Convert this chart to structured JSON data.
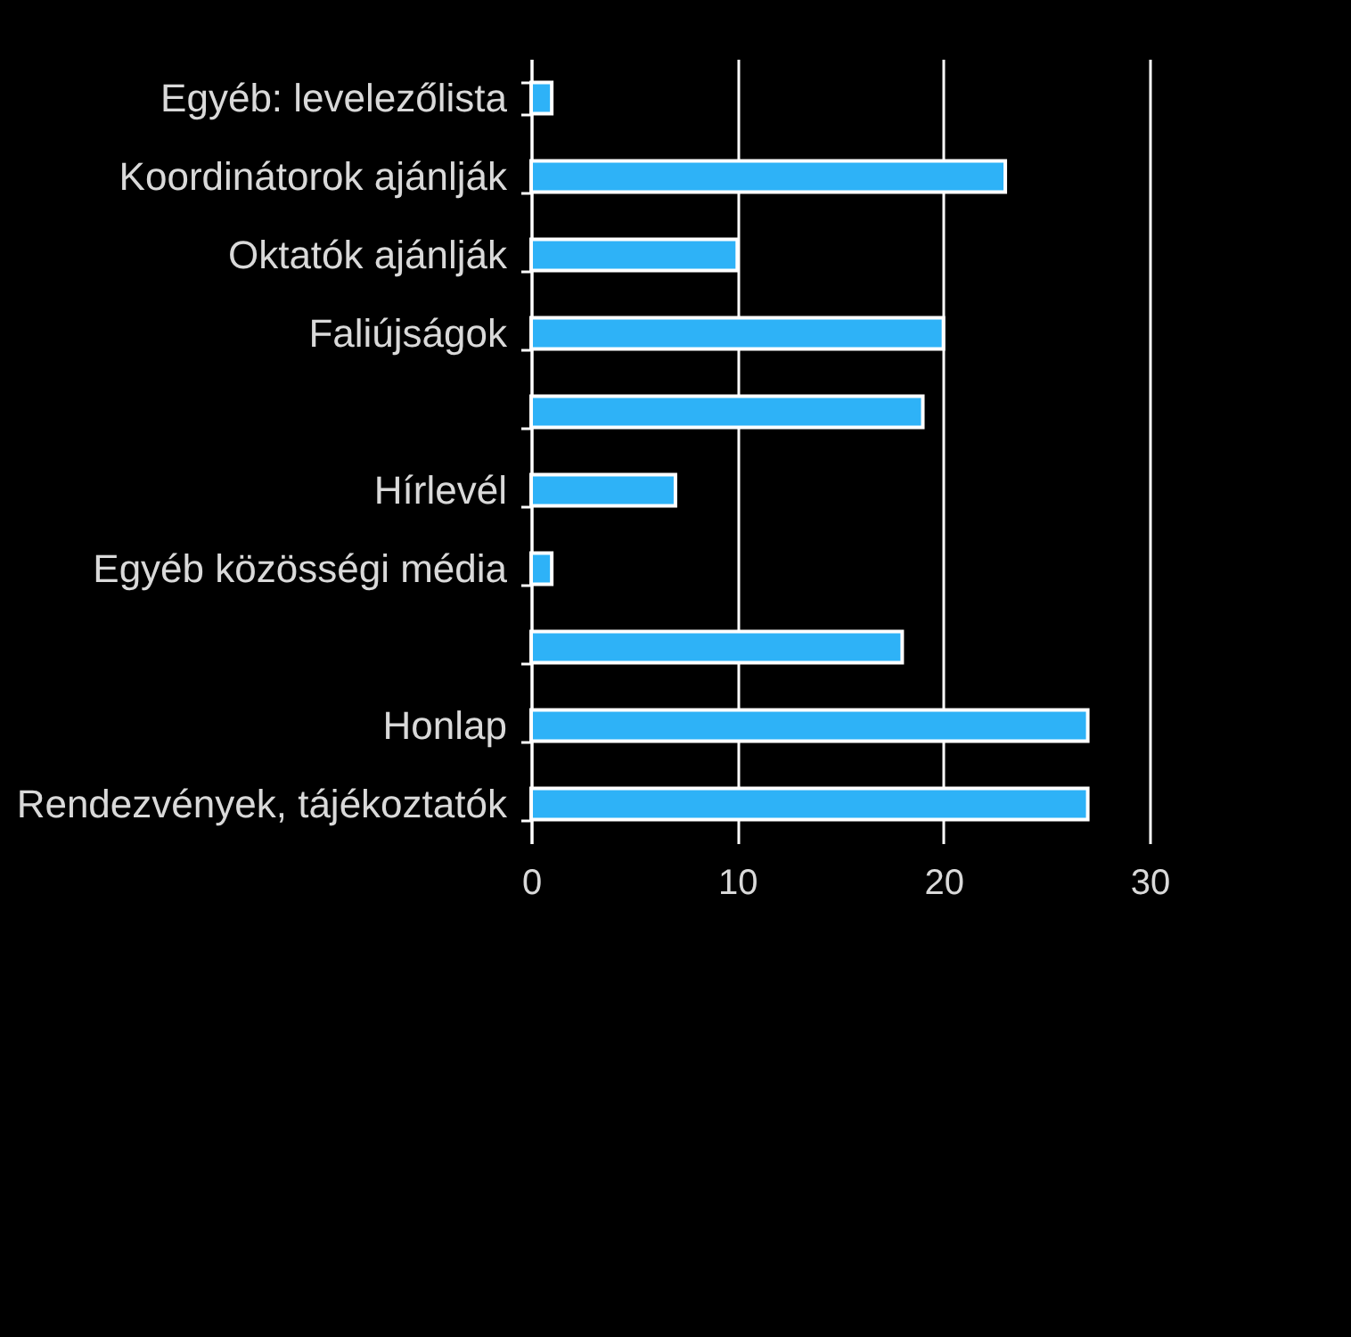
{
  "chart_data": {
    "type": "bar",
    "orientation": "horizontal",
    "categories": [
      "Egyéb: levelezőlista",
      "Koordinátorok ajánlják",
      "Oktatók ajánlják",
      "Faliújságok",
      null,
      "Hírlevél",
      "Egyéb közösségi média",
      null,
      "Honlap",
      "Rendezvények, tájékoztatók"
    ],
    "values": [
      1,
      23,
      10,
      20,
      19,
      7,
      1,
      18,
      27,
      27
    ],
    "color": "#2eb2f7",
    "xlim": [
      0,
      30
    ],
    "xticks": [
      0,
      10,
      20,
      30
    ],
    "grid": "x"
  }
}
